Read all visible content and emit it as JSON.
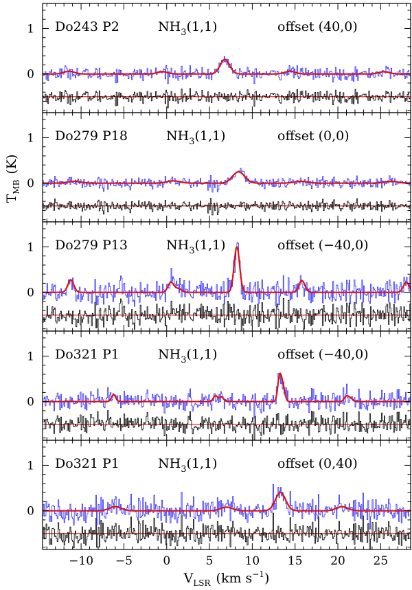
{
  "chart_data": {
    "type": "line",
    "xlabel": "V",
    "xlabel_sub": "LSR",
    "xlabel_unit": "(km s",
    "xlabel_unit_sup": "−1",
    "xlabel_close": ")",
    "ylabel": "T",
    "ylabel_sub": "MB",
    "ylabel_unit": "(K)",
    "xlim": [
      -14.5,
      28.5
    ],
    "ylim": [
      -0.85,
      1.55
    ],
    "x_ticks": [
      -10,
      -5,
      0,
      5,
      10,
      15,
      20,
      25
    ],
    "x_tick_labels": [
      "−10",
      "−5",
      "0",
      "5",
      "10",
      "15",
      "20",
      "25"
    ],
    "y_ticks": [
      0,
      1
    ],
    "y_tick_labels": [
      "0",
      "1"
    ],
    "residual_offset": -0.5,
    "colors": {
      "spectrum": "#2b2bff",
      "fit": "#e01010",
      "residual": "#000000",
      "baseline": "#e01010"
    },
    "panels": [
      {
        "source": "Do243 P2",
        "line": "NH",
        "line_sub": "3",
        "line_trans": "(1,1)",
        "offset": "offset (40,0)",
        "noise": 0.07,
        "components": [
          {
            "v": -11.4,
            "amp": 0.06,
            "w": 0.6
          },
          {
            "v": -0.5,
            "amp": 0.05,
            "w": 0.6
          },
          {
            "v": 6.8,
            "amp": 0.32,
            "w": 0.55
          },
          {
            "v": 14.4,
            "amp": 0.06,
            "w": 0.6
          },
          {
            "v": 25.4,
            "amp": 0.05,
            "w": 0.6
          }
        ]
      },
      {
        "source": "Do279 P18",
        "line": "NH",
        "line_sub": "3",
        "line_trans": "(1,1)",
        "offset": "offset (0,0)",
        "noise": 0.06,
        "components": [
          {
            "v": -10.8,
            "amp": 0.04,
            "w": 0.8
          },
          {
            "v": 0.8,
            "amp": 0.05,
            "w": 0.8
          },
          {
            "v": 8.4,
            "amp": 0.25,
            "w": 0.7
          },
          {
            "v": 15.7,
            "amp": 0.04,
            "w": 0.8
          },
          {
            "v": 26.2,
            "amp": 0.04,
            "w": 0.8
          }
        ]
      },
      {
        "source": "Do279 P13",
        "line": "NH",
        "line_sub": "3",
        "line_trans": "(1,1)",
        "offset": "offset (−40,0)",
        "noise": 0.14,
        "components": [
          {
            "v": -11.2,
            "amp": 0.27,
            "w": 0.35
          },
          {
            "v": 0.5,
            "amp": 0.22,
            "w": 0.35
          },
          {
            "v": 1.4,
            "amp": 0.08,
            "w": 0.35
          },
          {
            "v": 8.2,
            "amp": 1.0,
            "w": 0.32
          },
          {
            "v": 15.8,
            "amp": 0.26,
            "w": 0.35
          },
          {
            "v": 28.0,
            "amp": 0.22,
            "w": 0.35
          }
        ]
      },
      {
        "source": "Do321 P1",
        "line": "NH",
        "line_sub": "3",
        "line_trans": "(1,1)",
        "offset": "offset (−40,0)",
        "noise": 0.11,
        "components": [
          {
            "v": -6.2,
            "amp": 0.15,
            "w": 0.25
          },
          {
            "v": 5.7,
            "amp": 0.13,
            "w": 0.25
          },
          {
            "v": 6.4,
            "amp": 0.1,
            "w": 0.25
          },
          {
            "v": 13.2,
            "amp": 0.55,
            "w": 0.22
          },
          {
            "v": 13.6,
            "amp": 0.3,
            "w": 0.22
          },
          {
            "v": 21.0,
            "amp": 0.12,
            "w": 0.25
          },
          {
            "v": 21.5,
            "amp": 0.07,
            "w": 0.25
          }
        ]
      },
      {
        "source": "Do321 P1",
        "line": "NH",
        "line_sub": "3",
        "line_trans": "(1,1)",
        "offset": "offset (0,40)",
        "noise": 0.14,
        "components": [
          {
            "v": -6.0,
            "amp": 0.09,
            "w": 0.7
          },
          {
            "v": 7.0,
            "amp": 0.08,
            "w": 0.7
          },
          {
            "v": 13.3,
            "amp": 0.4,
            "w": 0.6
          },
          {
            "v": 20.5,
            "amp": 0.09,
            "w": 0.7
          }
        ]
      }
    ]
  }
}
